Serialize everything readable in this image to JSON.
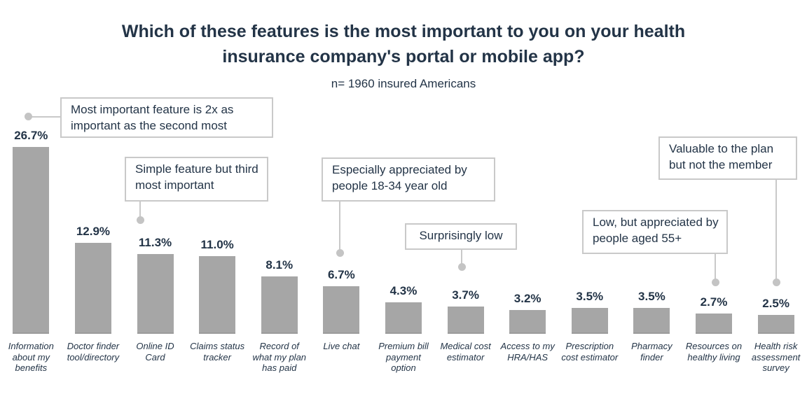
{
  "header": {
    "title": "Which of these features is the most important to you on your health insurance company's portal or mobile app?",
    "subtitle": "n= 1960 insured Americans"
  },
  "chart_data": {
    "type": "bar",
    "title": "Which of these features is the most important to you on your health insurance company's portal or mobile app?",
    "subtitle": "n= 1960 insured Americans",
    "categories": [
      "Information about my benefits",
      "Doctor finder tool/directory",
      "Online ID Card",
      "Claims status tracker",
      "Record of what my plan has paid",
      "Live chat",
      "Premium bill payment option",
      "Medical cost estimator",
      "Access to my HRA/HAS",
      "Prescription cost estimator",
      "Pharmacy finder",
      "Resources on healthy living",
      "Health risk assessment survey"
    ],
    "values": [
      26.7,
      12.9,
      11.3,
      11.0,
      8.1,
      6.7,
      4.3,
      3.7,
      3.2,
      3.5,
      3.5,
      2.7,
      2.5
    ],
    "value_labels": [
      "26.7%",
      "12.9%",
      "11.3%",
      "11.0%",
      "8.1%",
      "6.7%",
      "4.3%",
      "3.7%",
      "3.2%",
      "3.5%",
      "3.5%",
      "2.7%",
      "2.5%"
    ],
    "xlabel": "",
    "ylabel": "",
    "ylim": [
      0,
      28
    ],
    "grid": false,
    "legend": "none",
    "orientation": "vertical"
  },
  "annotations": [
    {
      "text": "Most important feature is 2x as important as the second most",
      "points_to": "Information about my benefits"
    },
    {
      "text": "Simple feature but third most important",
      "points_to": "Online ID Card"
    },
    {
      "text": "Especially appreciated by people 18-34 year old",
      "points_to": "Live chat"
    },
    {
      "text": "Surprisingly low",
      "points_to": "Medical cost estimator"
    },
    {
      "text": "Low, but appreciated by people aged 55+",
      "points_to": "Resources on healthy living"
    },
    {
      "text": "Valuable to the plan but not the member",
      "points_to": "Health risk assessment survey"
    }
  ],
  "colors": {
    "background": "#ffffff",
    "bar_fill": "#a6a6a6",
    "text_dark": "#233447",
    "callout_border": "#c9c9c9",
    "callout_dot": "#c4c4c4"
  }
}
